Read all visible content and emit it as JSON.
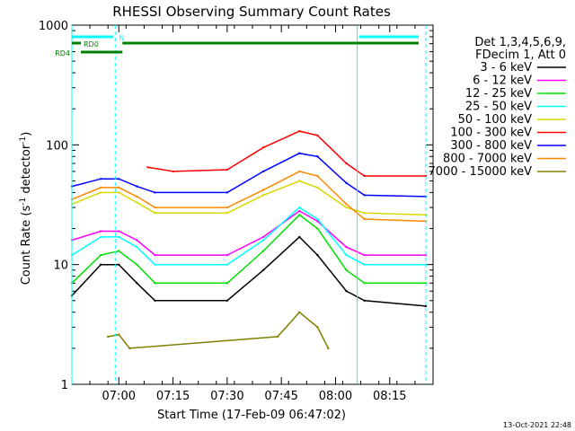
{
  "chart_data": {
    "type": "line",
    "title": "RHESSI Observing Summary Count Rates",
    "xlabel": "Start Time (17-Feb-09 06:47:02)",
    "ylabel_main": "Count Rate (s",
    "ylabel_sup1": "-1",
    "ylabel_mid": " detector",
    "ylabel_sup2": "-1",
    "ylabel_end": ")",
    "y_scale": "log",
    "ylim": [
      1,
      1000
    ],
    "x_range_minutes": [
      "06:47",
      "08:27"
    ],
    "x_ticks": [
      "07:00",
      "07:15",
      "07:30",
      "07:45",
      "08:00",
      "08:15"
    ],
    "y_ticks": [
      "1",
      "10",
      "100",
      "1000"
    ],
    "timestamp": "13-Oct-2021 22:48",
    "legend_header": [
      "Det 1,3,4,5,6,9,",
      "FDecim 1, Att 0"
    ],
    "series": [
      {
        "name": "3 - 6 keV",
        "color": "#000000",
        "points": [
          [
            "06:47",
            5.5
          ],
          [
            "06:55",
            10
          ],
          [
            "07:00",
            10
          ],
          [
            "07:05",
            7
          ],
          [
            "07:10",
            5
          ],
          [
            "07:30",
            5
          ],
          [
            "07:40",
            9
          ],
          [
            "07:50",
            17
          ],
          [
            "07:55",
            12
          ],
          [
            "08:03",
            6
          ],
          [
            "08:08",
            5
          ],
          [
            "08:25",
            4.5
          ]
        ]
      },
      {
        "name": "6 - 12 keV",
        "color": "#ff00ff",
        "points": [
          [
            "06:47",
            16
          ],
          [
            "06:55",
            19
          ],
          [
            "07:00",
            19
          ],
          [
            "07:05",
            16
          ],
          [
            "07:10",
            12
          ],
          [
            "07:30",
            12
          ],
          [
            "07:40",
            17
          ],
          [
            "07:50",
            28
          ],
          [
            "07:55",
            23
          ],
          [
            "08:03",
            14
          ],
          [
            "08:08",
            12
          ],
          [
            "08:25",
            12
          ]
        ]
      },
      {
        "name": "12 - 25 keV",
        "color": "#00e000",
        "points": [
          [
            "06:47",
            7
          ],
          [
            "06:55",
            12
          ],
          [
            "07:00",
            13
          ],
          [
            "07:05",
            10
          ],
          [
            "07:10",
            7
          ],
          [
            "07:30",
            7
          ],
          [
            "07:40",
            13
          ],
          [
            "07:50",
            26
          ],
          [
            "07:55",
            20
          ],
          [
            "08:03",
            9
          ],
          [
            "08:08",
            7
          ],
          [
            "08:25",
            7
          ]
        ]
      },
      {
        "name": "25 - 50 keV",
        "color": "#00ffff",
        "points": [
          [
            "06:47",
            12
          ],
          [
            "06:55",
            17
          ],
          [
            "07:00",
            17
          ],
          [
            "07:05",
            14
          ],
          [
            "07:10",
            10
          ],
          [
            "07:30",
            10
          ],
          [
            "07:40",
            16
          ],
          [
            "07:50",
            30
          ],
          [
            "07:55",
            24
          ],
          [
            "08:03",
            12
          ],
          [
            "08:08",
            10
          ],
          [
            "08:25",
            10
          ]
        ]
      },
      {
        "name": "50 - 100 keV",
        "color": "#d8d800",
        "points": [
          [
            "06:47",
            32
          ],
          [
            "06:55",
            40
          ],
          [
            "07:00",
            40
          ],
          [
            "07:05",
            33
          ],
          [
            "07:10",
            27
          ],
          [
            "07:30",
            27
          ],
          [
            "07:40",
            38
          ],
          [
            "07:50",
            50
          ],
          [
            "07:55",
            44
          ],
          [
            "08:03",
            30
          ],
          [
            "08:08",
            27
          ],
          [
            "08:25",
            26
          ]
        ]
      },
      {
        "name": "100 - 300 keV",
        "color": "#ff0000",
        "points": [
          [
            "07:08",
            65
          ],
          [
            "07:15",
            60
          ],
          [
            "07:30",
            62
          ],
          [
            "07:40",
            95
          ],
          [
            "07:50",
            130
          ],
          [
            "07:55",
            120
          ],
          [
            "08:03",
            70
          ],
          [
            "08:08",
            55
          ],
          [
            "08:25",
            55
          ]
        ]
      },
      {
        "name": "300 - 800 keV",
        "color": "#0000ff",
        "points": [
          [
            "06:47",
            45
          ],
          [
            "06:55",
            52
          ],
          [
            "07:00",
            52
          ],
          [
            "07:05",
            45
          ],
          [
            "07:10",
            40
          ],
          [
            "07:30",
            40
          ],
          [
            "07:40",
            60
          ],
          [
            "07:50",
            85
          ],
          [
            "07:55",
            80
          ],
          [
            "08:03",
            48
          ],
          [
            "08:08",
            38
          ],
          [
            "08:25",
            37
          ]
        ]
      },
      {
        "name": "800 - 7000 keV",
        "color": "#ff8800",
        "points": [
          [
            "06:47",
            35
          ],
          [
            "06:55",
            44
          ],
          [
            "07:00",
            44
          ],
          [
            "07:05",
            37
          ],
          [
            "07:10",
            30
          ],
          [
            "07:30",
            30
          ],
          [
            "07:40",
            42
          ],
          [
            "07:50",
            60
          ],
          [
            "07:55",
            55
          ],
          [
            "08:03",
            32
          ],
          [
            "08:08",
            24
          ],
          [
            "08:25",
            23
          ]
        ]
      },
      {
        "name": "7000 - 15000 keV",
        "color": "#808000",
        "points": [
          [
            "06:57",
            2.5
          ],
          [
            "07:00",
            2.6
          ],
          [
            "07:03",
            2
          ],
          [
            "07:44",
            2.5
          ],
          [
            "07:50",
            4
          ],
          [
            "07:55",
            3
          ],
          [
            "07:58",
            2
          ]
        ]
      }
    ],
    "status_bars": [
      {
        "label": "N",
        "color": "#00ffff"
      },
      {
        "label": "RD0",
        "color": "#008000"
      },
      {
        "label": "RD4",
        "color": "#008000"
      }
    ]
  }
}
